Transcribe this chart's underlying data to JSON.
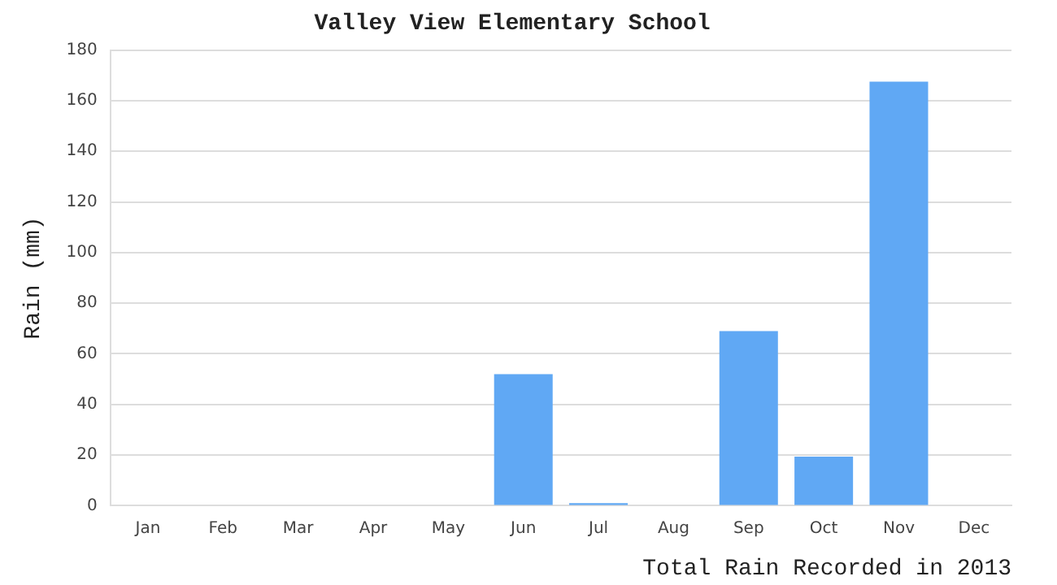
{
  "chart_data": {
    "type": "bar",
    "title": "Valley View Elementary School",
    "xlabel": "Total Rain Recorded in 2013",
    "ylabel": "Rain (mm)",
    "categories": [
      "Jan",
      "Feb",
      "Mar",
      "Apr",
      "May",
      "Jun",
      "Jul",
      "Aug",
      "Sep",
      "Oct",
      "Nov",
      "Dec"
    ],
    "values": [
      0,
      0,
      0,
      0,
      0,
      52,
      1,
      0,
      69,
      19.4,
      167.5,
      0
    ],
    "color": "#60a8f4",
    "ylim": [
      0,
      180
    ],
    "yticks": [
      0,
      20,
      40,
      60,
      80,
      100,
      120,
      140,
      160,
      180
    ],
    "grid": "y",
    "legend": false
  }
}
